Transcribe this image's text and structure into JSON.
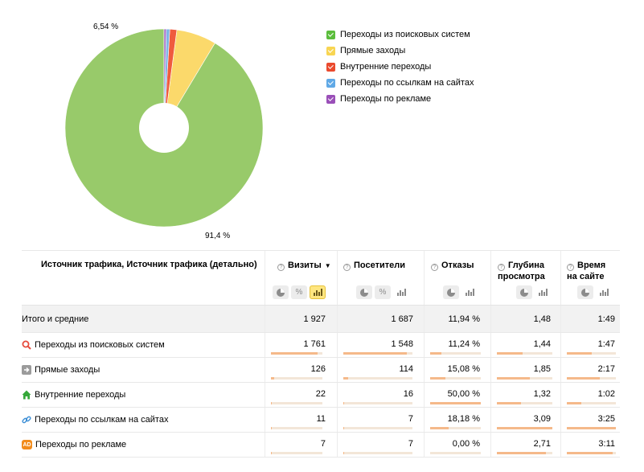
{
  "pie": {
    "slice_labels": [
      "6,54 %",
      "91,4 %"
    ],
    "slices": [
      {
        "name": "Переходы из поисковых систем",
        "value": 1761,
        "color": "#98ca6a"
      },
      {
        "name": "Прямые заходы",
        "value": 126,
        "color": "#fbd96b"
      },
      {
        "name": "Внутренние переходы",
        "value": 22,
        "color": "#ef5b3e"
      },
      {
        "name": "Переходы по ссылкам на сайтах",
        "value": 11,
        "color": "#7fb5e6"
      },
      {
        "name": "Переходы по рекламе",
        "value": 7,
        "color": "#a56ac4"
      }
    ]
  },
  "legend": [
    {
      "label": "Переходы из поисковых систем",
      "color": "#5bbd3c"
    },
    {
      "label": "Прямые заходы",
      "color": "#f8d552"
    },
    {
      "label": "Внутренние переходы",
      "color": "#ea4a2e"
    },
    {
      "label": "Переходы по ссылкам на сайтах",
      "color": "#60a9e6"
    },
    {
      "label": "Переходы по рекламе",
      "color": "#9a4fb8"
    }
  ],
  "table": {
    "dimension_header": "Источник трафика, Источник трафика (детально)",
    "columns": [
      {
        "line1": "Визиты",
        "line2": "",
        "sorted": true,
        "sort_icon": "▼"
      },
      {
        "line1": "Посетители",
        "line2": "",
        "sorted": false,
        "sort_icon": ""
      },
      {
        "line1": "Отказы",
        "line2": "",
        "sorted": false,
        "sort_icon": ""
      },
      {
        "line1": "Глубина",
        "line2": "просмотра",
        "sorted": false,
        "sort_icon": ""
      },
      {
        "line1": "Время",
        "line2": "на сайте",
        "sorted": false,
        "sort_icon": ""
      }
    ],
    "help_glyph": "?",
    "percent_glyph": "%",
    "total": {
      "label": "Итого и средние",
      "values": [
        "1 927",
        "1 687",
        "11,94 %",
        "1,48",
        "1:49"
      ]
    },
    "rows": [
      {
        "label": "Переходы из поисковых систем",
        "icon": "search-icon",
        "icon_color": "#e64b3c",
        "values": [
          "1 761",
          "1 548",
          "11,24 %",
          "1,44",
          "1:47"
        ],
        "bars": [
          0.91,
          0.92,
          0.22,
          0.47,
          0.51
        ]
      },
      {
        "label": "Прямые заходы",
        "icon": "arrow-right-icon",
        "icon_color": "#9b9b9b",
        "values": [
          "126",
          "114",
          "15,08 %",
          "1,85",
          "2:17"
        ],
        "bars": [
          0.07,
          0.07,
          0.3,
          0.6,
          0.67
        ]
      },
      {
        "label": "Внутренние переходы",
        "icon": "home-icon",
        "icon_color": "#36a83a",
        "values": [
          "22",
          "16",
          "50,00 %",
          "1,32",
          "1:02"
        ],
        "bars": [
          0.012,
          0.01,
          1.0,
          0.43,
          0.3
        ]
      },
      {
        "label": "Переходы по ссылкам на сайтах",
        "icon": "link-icon",
        "icon_color": "#3d8fd6",
        "values": [
          "11",
          "7",
          "18,18 %",
          "3,09",
          "3:25"
        ],
        "bars": [
          0.006,
          0.004,
          0.36,
          1.0,
          1.0
        ]
      },
      {
        "label": "Переходы по рекламе",
        "icon": "ad-icon",
        "icon_color": "#f28c1c",
        "icon_text": "AD",
        "values": [
          "7",
          "7",
          "0,00 %",
          "2,71",
          "3:11"
        ],
        "bars": [
          0.004,
          0.004,
          0.0,
          0.88,
          0.93
        ]
      }
    ]
  }
}
